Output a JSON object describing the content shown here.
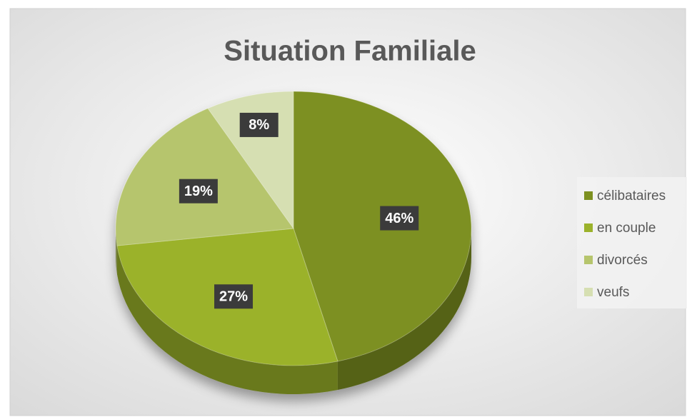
{
  "chart_data": {
    "type": "pie",
    "title": "Situation Familiale",
    "categories": [
      "célibataires",
      "en couple",
      "divorcés",
      "veufs"
    ],
    "values": [
      46,
      27,
      19,
      8
    ],
    "value_labels": [
      "46%",
      "27%",
      "19%",
      "8%"
    ],
    "colors": [
      "#7d9020",
      "#9bb22b",
      "#b6c56d",
      "#d6dfb2"
    ],
    "legend": "right"
  }
}
